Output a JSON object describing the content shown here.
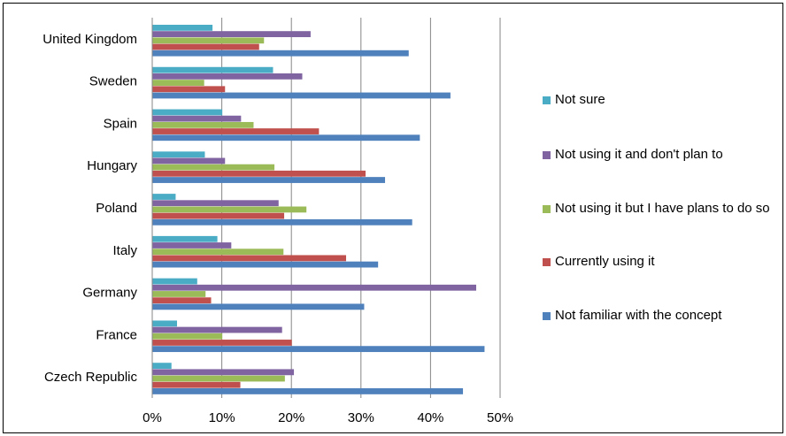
{
  "chart_data": {
    "type": "bar",
    "orientation": "horizontal",
    "categories": [
      "United Kingdom",
      "Sweden",
      "Spain",
      "Hungary",
      "Poland",
      "Italy",
      "Germany",
      "France",
      "Czech Republic"
    ],
    "series": [
      {
        "name": "Not sure",
        "color": "#4bacc6",
        "values": [
          8.6,
          17.3,
          10.0,
          7.5,
          3.3,
          9.3,
          6.4,
          3.5,
          2.7
        ]
      },
      {
        "name": "Not using it and don't plan to",
        "color": "#8064a2",
        "values": [
          22.7,
          21.5,
          12.7,
          10.4,
          18.1,
          11.3,
          46.5,
          18.6,
          20.3
        ]
      },
      {
        "name": "Not using it but I have plans to do so",
        "color": "#9bbb59",
        "values": [
          16.0,
          7.4,
          14.5,
          17.5,
          22.1,
          18.8,
          7.6,
          10.0,
          19.0
        ]
      },
      {
        "name": "Currently using it",
        "color": "#c0504d",
        "values": [
          15.3,
          10.4,
          23.9,
          30.6,
          18.9,
          27.8,
          8.4,
          20.0,
          12.6
        ]
      },
      {
        "name": "Not familiar with the concept",
        "color": "#4f81bd",
        "values": [
          36.8,
          42.8,
          38.4,
          33.4,
          37.3,
          32.4,
          30.4,
          47.7,
          44.6
        ]
      }
    ],
    "xlim": [
      0,
      50
    ],
    "xticks": [
      "0%",
      "10%",
      "20%",
      "30%",
      "40%",
      "50%"
    ],
    "grid": true,
    "legend_position": "right",
    "title": "",
    "xlabel": "",
    "ylabel": ""
  }
}
